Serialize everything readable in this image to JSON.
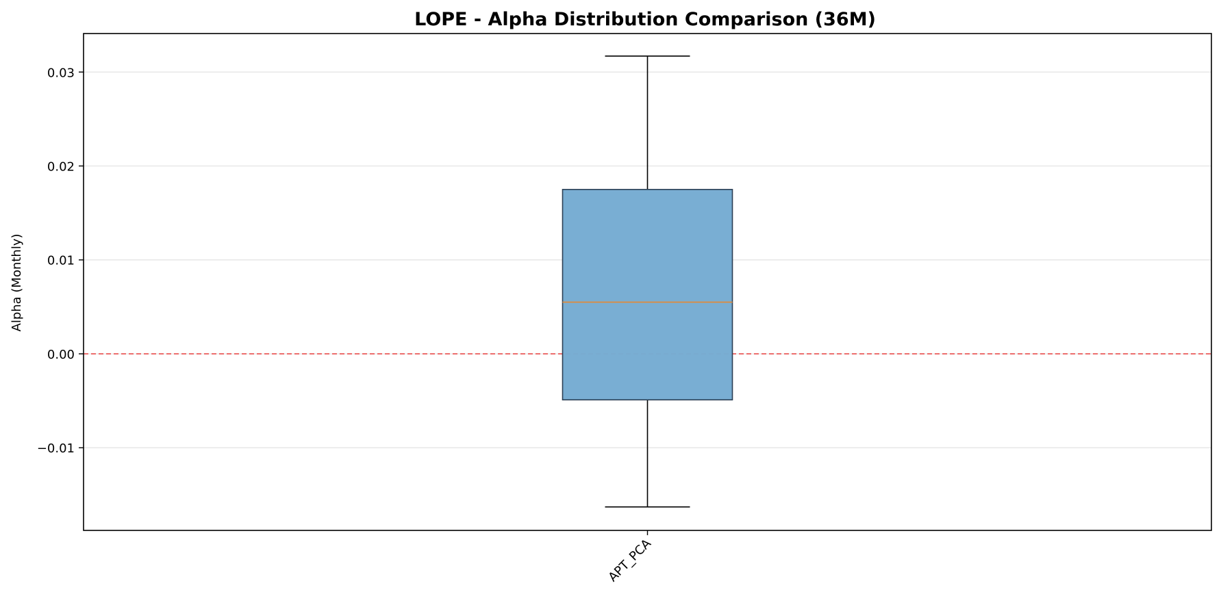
{
  "chart_data": {
    "type": "box",
    "title": "LOPE - Alpha Distribution Comparison (36M)",
    "xlabel": "",
    "ylabel": "Alpha (Monthly)",
    "ylim": [
      -0.0188,
      0.0341
    ],
    "yticks": [
      -0.01,
      0.0,
      0.01,
      0.02,
      0.03
    ],
    "ytick_labels": [
      "−0.01",
      "0.00",
      "0.01",
      "0.02",
      "0.03"
    ],
    "grid": "y",
    "reference_line": {
      "y": 0.0,
      "style": "dashed",
      "color": "#d62728"
    },
    "categories": [
      "APT_PCA"
    ],
    "boxes": [
      {
        "name": "APT_PCA",
        "whisker_low": -0.0163,
        "q1": -0.0049,
        "median": 0.0055,
        "q3": 0.0175,
        "whisker_high": 0.0317
      }
    ],
    "colors": {
      "box_fill": "#76acd2",
      "box_edge": "#2b3f54",
      "median": "#e08a3a",
      "reference_line": "#e8413f",
      "grid": "#e3e3e3"
    }
  }
}
